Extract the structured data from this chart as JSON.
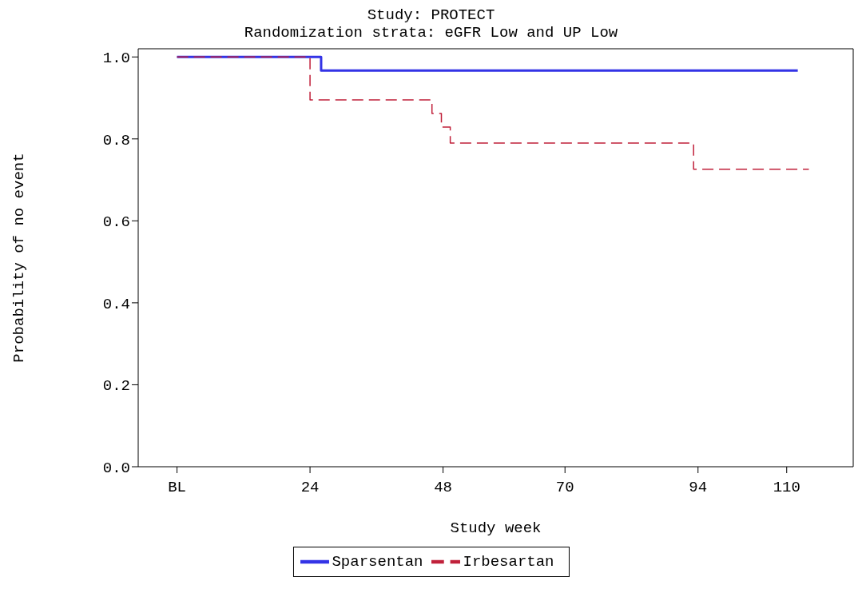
{
  "chart_data": {
    "type": "step",
    "title": "Study: PROTECT",
    "subtitle": "Randomization strata: eGFR Low and UP Low",
    "xlabel": "Study week",
    "ylabel": "Probability of no event",
    "xlim": [
      -7,
      122
    ],
    "xticks": [
      {
        "value": 0,
        "label": "BL"
      },
      24,
      48,
      70,
      94,
      110
    ],
    "ylim": [
      0,
      1.02
    ],
    "yticks": [
      {
        "value": 0,
        "label": "0.0"
      },
      0.2,
      0.4,
      0.6,
      0.8,
      {
        "value": 1,
        "label": "1.0"
      }
    ],
    "legend": "bottom",
    "marker": "none",
    "series": [
      {
        "name": "Sparsentan",
        "color": "#3333e6",
        "line_style": "solid",
        "x": [
          0,
          26,
          112
        ],
        "values": [
          1,
          0.967,
          0.967
        ]
      },
      {
        "name": "Irbesartan",
        "color": "#c0203a",
        "line_style": "dashed",
        "x": [
          0,
          24,
          46,
          47.7,
          49.3,
          93.2,
          114
        ],
        "values": [
          1,
          0.895,
          0.862,
          0.829,
          0.79,
          0.726,
          0.726
        ]
      }
    ]
  }
}
